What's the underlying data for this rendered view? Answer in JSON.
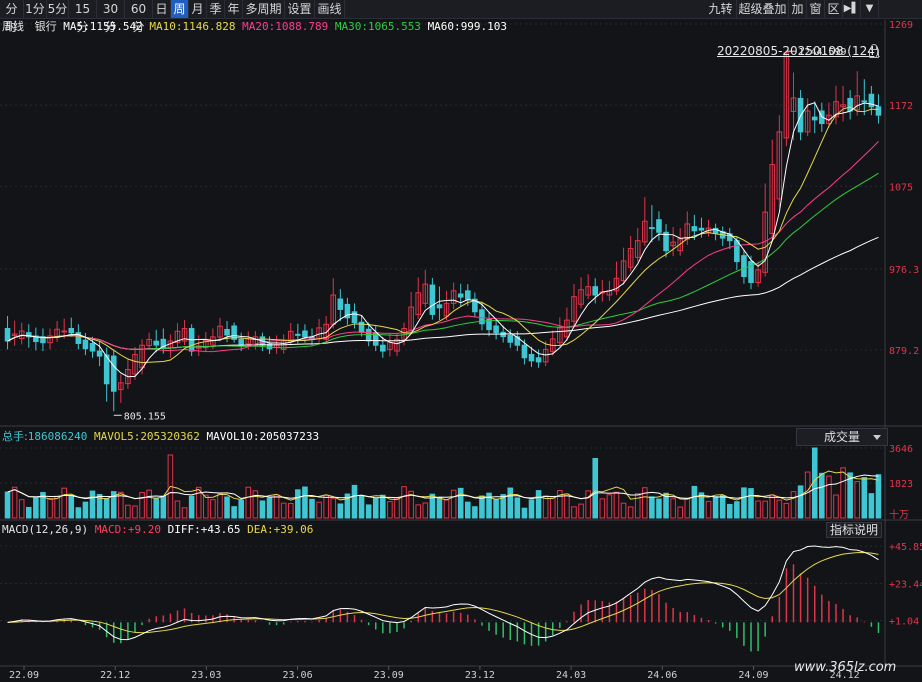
{
  "toolbar": {
    "left": [
      "分时",
      "1分",
      "5分",
      "15分",
      "30分",
      "60分",
      "日",
      "周",
      "月",
      "季",
      "年",
      "多周期",
      "设置",
      "画线"
    ],
    "active": "周",
    "right": [
      "九转",
      "超级叠加",
      "加",
      "窗",
      "区"
    ]
  },
  "info": {
    "period": "周线",
    "name": "银行",
    "ma5_label": "MA5:",
    "ma5_value": "1155.542",
    "ma10_label": "MA10:",
    "ma10_value": "1146.828",
    "ma20_label": "MA20:",
    "ma20_value": "1088.789",
    "ma30_label": "MA30:",
    "ma30_value": "1065.553",
    "ma60_label": "MA60:",
    "ma60_value": "999.103"
  },
  "range_label": "20220805-20250108 (124)",
  "price_labels": [
    "1269",
    "1172",
    "1075",
    "976.3",
    "879.2"
  ],
  "high_label": "1244.599",
  "low_label": "805.155",
  "volume": {
    "total_label": "总手:",
    "total_value": "186086240",
    "mavol5_label": "MAVOL5:",
    "mavol5_value": "205320362",
    "mavol10_label": "MAVOL10:",
    "mavol10_value": "205037233",
    "dropdown": "成交量",
    "axis": [
      "3646",
      "1823",
      "十万"
    ]
  },
  "macd": {
    "params": "MACD(12,26,9)",
    "macd_label": "MACD:",
    "macd_value": "+9.20",
    "diff_label": "DIFF:",
    "diff_value": "+43.65",
    "dea_label": "DEA:",
    "dea_value": "+39.06",
    "button": "指标说明",
    "axis": [
      "+45.85",
      "+23.44",
      "+1.04"
    ]
  },
  "dates": [
    "22.09",
    "22.12",
    "23.03",
    "23.06",
    "23.09",
    "23.12",
    "24.03",
    "24.06",
    "24.09",
    "24.12"
  ],
  "watermark": "www.365lz.com",
  "colors": {
    "up": "#e0344a",
    "down": "#3ec6d2",
    "ma5": "#ffffff",
    "ma10": "#e6d84a",
    "ma20": "#ff3d8c",
    "ma30": "#2ecc40",
    "ma60": "#ffffff"
  },
  "chart_data": {
    "type": "candlestick",
    "title": "周线 银行",
    "ylim": [
      805.155,
      1269
    ],
    "candles": [
      [
        905,
        890,
        920,
        880
      ],
      [
        893,
        902,
        912,
        886
      ],
      [
        900,
        895,
        910,
        882
      ],
      [
        895,
        888,
        905,
        878
      ],
      [
        888,
        896,
        905,
        880
      ],
      [
        895,
        905,
        915,
        890
      ],
      [
        905,
        900,
        918,
        895
      ],
      [
        900,
        887,
        910,
        880
      ],
      [
        887,
        878,
        895,
        870
      ],
      [
        878,
        872,
        890,
        860
      ],
      [
        872,
        830,
        880,
        806
      ],
      [
        832,
        840,
        850,
        816
      ],
      [
        840,
        858,
        870,
        835
      ],
      [
        858,
        885,
        892,
        850
      ],
      [
        885,
        892,
        900,
        880
      ],
      [
        892,
        882,
        905,
        875
      ],
      [
        882,
        890,
        898,
        870
      ],
      [
        890,
        905,
        915,
        885
      ],
      [
        905,
        878,
        910,
        872
      ],
      [
        878,
        885,
        895,
        872
      ],
      [
        885,
        895,
        905,
        880
      ],
      [
        895,
        908,
        918,
        890
      ],
      [
        908,
        892,
        912,
        888
      ],
      [
        892,
        885,
        900,
        878
      ],
      [
        885,
        895,
        902,
        880
      ],
      [
        895,
        885,
        900,
        878
      ],
      [
        885,
        880,
        895,
        874
      ],
      [
        880,
        890,
        898,
        875
      ],
      [
        890,
        902,
        912,
        885
      ],
      [
        902,
        895,
        910,
        888
      ],
      [
        895,
        892,
        905,
        885
      ],
      [
        892,
        910,
        920,
        888
      ],
      [
        910,
        945,
        965,
        905
      ],
      [
        945,
        925,
        950,
        915
      ],
      [
        925,
        912,
        935,
        905
      ],
      [
        912,
        900,
        920,
        895
      ],
      [
        900,
        885,
        908,
        878
      ],
      [
        885,
        878,
        895,
        870
      ],
      [
        878,
        892,
        900,
        872
      ],
      [
        892,
        905,
        912,
        885
      ],
      [
        905,
        935,
        955,
        900
      ],
      [
        935,
        958,
        975,
        930
      ],
      [
        958,
        920,
        965,
        915
      ],
      [
        920,
        935,
        950,
        915
      ],
      [
        935,
        950,
        960,
        928
      ],
      [
        950,
        940,
        958,
        932
      ],
      [
        940,
        925,
        948,
        918
      ],
      [
        925,
        908,
        935,
        900
      ],
      [
        908,
        900,
        915,
        892
      ],
      [
        900,
        895,
        908,
        888
      ],
      [
        895,
        885,
        902,
        878
      ],
      [
        885,
        870,
        892,
        862
      ],
      [
        870,
        865,
        880,
        858
      ],
      [
        865,
        880,
        890,
        860
      ],
      [
        880,
        895,
        905,
        875
      ],
      [
        895,
        915,
        930,
        890
      ],
      [
        915,
        945,
        960,
        910
      ],
      [
        945,
        955,
        970,
        940
      ],
      [
        955,
        945,
        965,
        935
      ],
      [
        945,
        950,
        962,
        938
      ],
      [
        950,
        965,
        985,
        945
      ],
      [
        965,
        990,
        1005,
        960
      ],
      [
        990,
        1010,
        1025,
        985
      ],
      [
        1010,
        1035,
        1065,
        1005
      ],
      [
        1035,
        1020,
        1045,
        1010
      ],
      [
        1020,
        998,
        1030,
        990
      ],
      [
        998,
        1012,
        1025,
        992
      ],
      [
        1012,
        1030,
        1045,
        1005
      ],
      [
        1030,
        1020,
        1040,
        1012
      ],
      [
        1020,
        1025,
        1035,
        1015
      ],
      [
        1025,
        1018,
        1030,
        1010
      ],
      [
        1018,
        1010,
        1025,
        1000
      ],
      [
        1010,
        985,
        1015,
        975
      ],
      [
        985,
        960,
        992,
        952
      ],
      [
        960,
        975,
        985,
        955
      ],
      [
        975,
        1060,
        1100,
        970
      ],
      [
        1060,
        1140,
        1160,
        1050
      ],
      [
        1140,
        1244,
        1244,
        1130
      ],
      [
        1180,
        1140,
        1190,
        1130
      ],
      [
        1140,
        1165,
        1180,
        1135
      ],
      [
        1165,
        1150,
        1175,
        1140
      ],
      [
        1150,
        1160,
        1175,
        1145
      ],
      [
        1160,
        1180,
        1200,
        1150
      ],
      [
        1180,
        1165,
        1190,
        1155
      ],
      [
        1165,
        1185,
        1215,
        1160
      ],
      [
        1185,
        1170,
        1195,
        1160
      ],
      [
        1170,
        1160,
        1185,
        1150
      ]
    ]
  }
}
